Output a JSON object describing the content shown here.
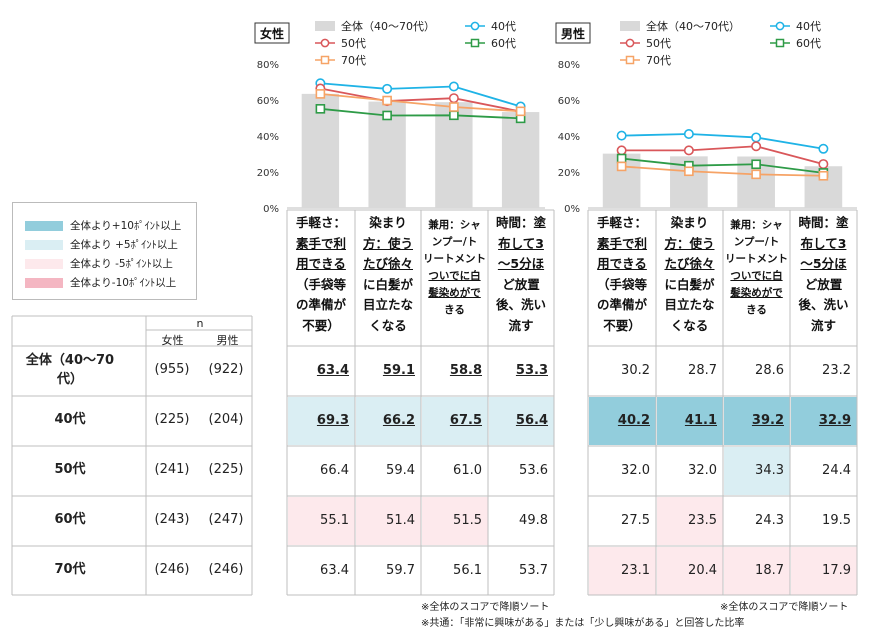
{
  "legend_color": {
    "items": [
      {
        "label": "全体より+10ﾎﾟｲﾝﾄ以上",
        "color": "#92cddc"
      },
      {
        "label": "全体より +5ﾎﾟｲﾝﾄ以上",
        "color": "#daeef3"
      },
      {
        "label": "全体より -5ﾎﾟｲﾝﾄ以上",
        "color": "#fde9ec"
      },
      {
        "label": "全体より-10ﾎﾟｲﾝﾄ以上",
        "color": "#f4b6c2"
      }
    ]
  },
  "n_header": {
    "n": "n",
    "female": "女性",
    "male": "男性"
  },
  "rows": [
    {
      "label": "全体（40～70代）",
      "n_f": "(955)",
      "n_m": "(922)"
    },
    {
      "label": "40代",
      "n_f": "(225)",
      "n_m": "(204)"
    },
    {
      "label": "50代",
      "n_f": "(241)",
      "n_m": "(225)"
    },
    {
      "label": "60代",
      "n_f": "(243)",
      "n_m": "(247)"
    },
    {
      "label": "70代",
      "n_f": "(246)",
      "n_m": "(246)"
    }
  ],
  "columns": [
    {
      "l1": "手軽さ：",
      "l2": "素手で利",
      "l3": "用できる",
      "l4": "（手袋等",
      "l5": "の準備が",
      "l6": "不要）"
    },
    {
      "l1": "染まり",
      "l2": "方：使う",
      "l3": "たび徐々",
      "l4": "に白髪が",
      "l5": "目立たな",
      "l6": "くなる"
    },
    {
      "l1": "兼用：シャ",
      "l2": "ンプー/ト",
      "l3": "リートメント",
      "l4": "ついでに白",
      "l5": "髪染めがで",
      "l6": "きる"
    },
    {
      "l1": "時間：塗",
      "l2": "布して3",
      "l3": "～5分ほ",
      "l4": "ど放置",
      "l5": "後、洗い",
      "l6": "流す"
    }
  ],
  "female_table": [
    [
      "63.4",
      "59.1",
      "58.8",
      "53.3"
    ],
    [
      "69.3",
      "66.2",
      "67.5",
      "56.4"
    ],
    [
      "66.4",
      "59.4",
      "61.0",
      "53.6"
    ],
    [
      "55.1",
      "51.4",
      "51.5",
      "49.8"
    ],
    [
      "63.4",
      "59.7",
      "56.1",
      "53.7"
    ]
  ],
  "male_table": [
    [
      "30.2",
      "28.7",
      "28.6",
      "23.2"
    ],
    [
      "40.2",
      "41.1",
      "39.2",
      "32.9"
    ],
    [
      "32.0",
      "32.0",
      "34.3",
      "24.4"
    ],
    [
      "27.5",
      "23.5",
      "24.3",
      "19.5"
    ],
    [
      "23.1",
      "20.4",
      "18.7",
      "17.9"
    ]
  ],
  "cell_colors": {
    "female": [
      [
        "none",
        "none",
        "none",
        "none"
      ],
      [
        "#daeef3",
        "#daeef3",
        "#daeef3",
        "#daeef3"
      ],
      [
        "none",
        "none",
        "none",
        "none"
      ],
      [
        "#fde9ec",
        "#fde9ec",
        "#fde9ec",
        "none"
      ],
      [
        "none",
        "none",
        "none",
        "none"
      ]
    ],
    "male": [
      [
        "none",
        "none",
        "none",
        "none"
      ],
      [
        "#92cddc",
        "#92cddc",
        "#92cddc",
        "#92cddc"
      ],
      [
        "none",
        "none",
        "#daeef3",
        "none"
      ],
      [
        "none",
        "#fde9ec",
        "none",
        "none"
      ],
      [
        "#fde9ec",
        "#fde9ec",
        "#fde9ec",
        "#fde9ec"
      ]
    ]
  },
  "notes": {
    "sort_female": "※全体のスコアで降順ソート",
    "sort_male": "※全体のスコアで降順ソート",
    "common": "※共通：「非常に興味がある」または「少し興味がある」と回答した比率"
  },
  "chart_data": [
    {
      "type": "bar",
      "title": "女性",
      "categories": [
        "手軽さ",
        "染まり方",
        "兼用",
        "時間"
      ],
      "ylim": [
        0,
        80
      ],
      "yticks": [
        "0%",
        "20%",
        "40%",
        "60%",
        "80%"
      ],
      "bar_series": {
        "name": "全体（40～70代）",
        "values": [
          63.4,
          59.1,
          58.8,
          53.3
        ],
        "color": "#d9d9d9"
      },
      "series": [
        {
          "name": "40代",
          "values": [
            69.3,
            66.2,
            67.5,
            56.4
          ],
          "color": "#1fb3e6",
          "marker": "circle"
        },
        {
          "name": "50代",
          "values": [
            66.4,
            59.4,
            61.0,
            53.6
          ],
          "color": "#d9575a",
          "marker": "circle"
        },
        {
          "name": "60代",
          "values": [
            55.1,
            51.4,
            51.5,
            49.8
          ],
          "color": "#2e9b47",
          "marker": "square"
        },
        {
          "name": "70代",
          "values": [
            63.4,
            59.7,
            56.1,
            53.7
          ],
          "color": "#f6a366",
          "marker": "square"
        }
      ]
    },
    {
      "type": "bar",
      "title": "男性",
      "categories": [
        "手軽さ",
        "染まり方",
        "兼用",
        "時間"
      ],
      "ylim": [
        0,
        80
      ],
      "yticks": [
        "0%",
        "20%",
        "40%",
        "60%",
        "80%"
      ],
      "bar_series": {
        "name": "全体（40～70代）",
        "values": [
          30.2,
          28.7,
          28.6,
          23.2
        ],
        "color": "#d9d9d9"
      },
      "series": [
        {
          "name": "40代",
          "values": [
            40.2,
            41.1,
            39.2,
            32.9
          ],
          "color": "#1fb3e6",
          "marker": "circle"
        },
        {
          "name": "50代",
          "values": [
            32.0,
            32.0,
            34.3,
            24.4
          ],
          "color": "#d9575a",
          "marker": "circle"
        },
        {
          "name": "60代",
          "values": [
            27.5,
            23.5,
            24.3,
            19.5
          ],
          "color": "#2e9b47",
          "marker": "square"
        },
        {
          "name": "70代",
          "values": [
            23.1,
            20.4,
            18.7,
            17.9
          ],
          "color": "#f6a366",
          "marker": "square"
        }
      ]
    }
  ]
}
